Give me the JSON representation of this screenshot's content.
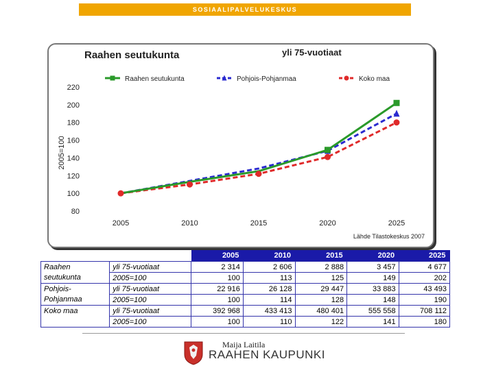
{
  "banner": "SOSIAALIPALVELUKESKUS",
  "chart_data": {
    "type": "line",
    "title": "Raahen seutukunta",
    "subtitle": "yli 75-vuotiaat",
    "ylabel": "2005=100",
    "source": "Lähde Tilastokeskus 2007",
    "categories": [
      "2005",
      "2010",
      "2015",
      "2020",
      "2025"
    ],
    "yticks": [
      "220",
      "200",
      "180",
      "160",
      "140",
      "120",
      "100",
      "80"
    ],
    "ylim": [
      80,
      220
    ],
    "series": [
      {
        "name": "Raahen seutukunta",
        "values": [
          100,
          113,
          125,
          149,
          202
        ],
        "color": "#2a9a2a",
        "style": "solid",
        "marker": "square"
      },
      {
        "name": "Pohjois-Pohjanmaa",
        "values": [
          100,
          114,
          128,
          148,
          190
        ],
        "color": "#2a2acf",
        "style": "dashed",
        "marker": "triangle"
      },
      {
        "name": "Koko maa",
        "values": [
          100,
          110,
          122,
          141,
          180
        ],
        "color": "#e02a2a",
        "style": "dashed",
        "marker": "circle"
      }
    ]
  },
  "table": {
    "years": [
      "2005",
      "2010",
      "2015",
      "2020",
      "2025"
    ],
    "groups": [
      {
        "name": "Raahen seutukunta",
        "name_lines": [
          "Raahen",
          "seutukunta"
        ],
        "rows": [
          {
            "label": "yli 75-vuotiaat",
            "values": [
              "2 314",
              "2 606",
              "2 888",
              "3 457",
              "4 677"
            ]
          },
          {
            "label": "2005=100",
            "values": [
              "100",
              "113",
              "125",
              "149",
              "202"
            ]
          }
        ]
      },
      {
        "name": "Pohjois-Pohjanmaa",
        "name_lines": [
          "Pohjois-",
          "Pohjanmaa"
        ],
        "rows": [
          {
            "label": "yli 75-vuotiaat",
            "values": [
              "22 916",
              "26 128",
              "29 447",
              "33 883",
              "43 493"
            ]
          },
          {
            "label": "2005=100",
            "values": [
              "100",
              "114",
              "128",
              "148",
              "190"
            ]
          }
        ]
      },
      {
        "name": "Koko maa",
        "name_lines": [
          "Koko maa",
          ""
        ],
        "rows": [
          {
            "label": "yli 75-vuotiaat",
            "values": [
              "392 968",
              "433 413",
              "480 401",
              "555 558",
              "708 112"
            ]
          },
          {
            "label": "2005=100",
            "values": [
              "100",
              "110",
              "122",
              "141",
              "180"
            ]
          }
        ]
      }
    ]
  },
  "footer": {
    "author": "Maija Laitila",
    "logo_text": "RAAHEN KAUPUNKI"
  }
}
